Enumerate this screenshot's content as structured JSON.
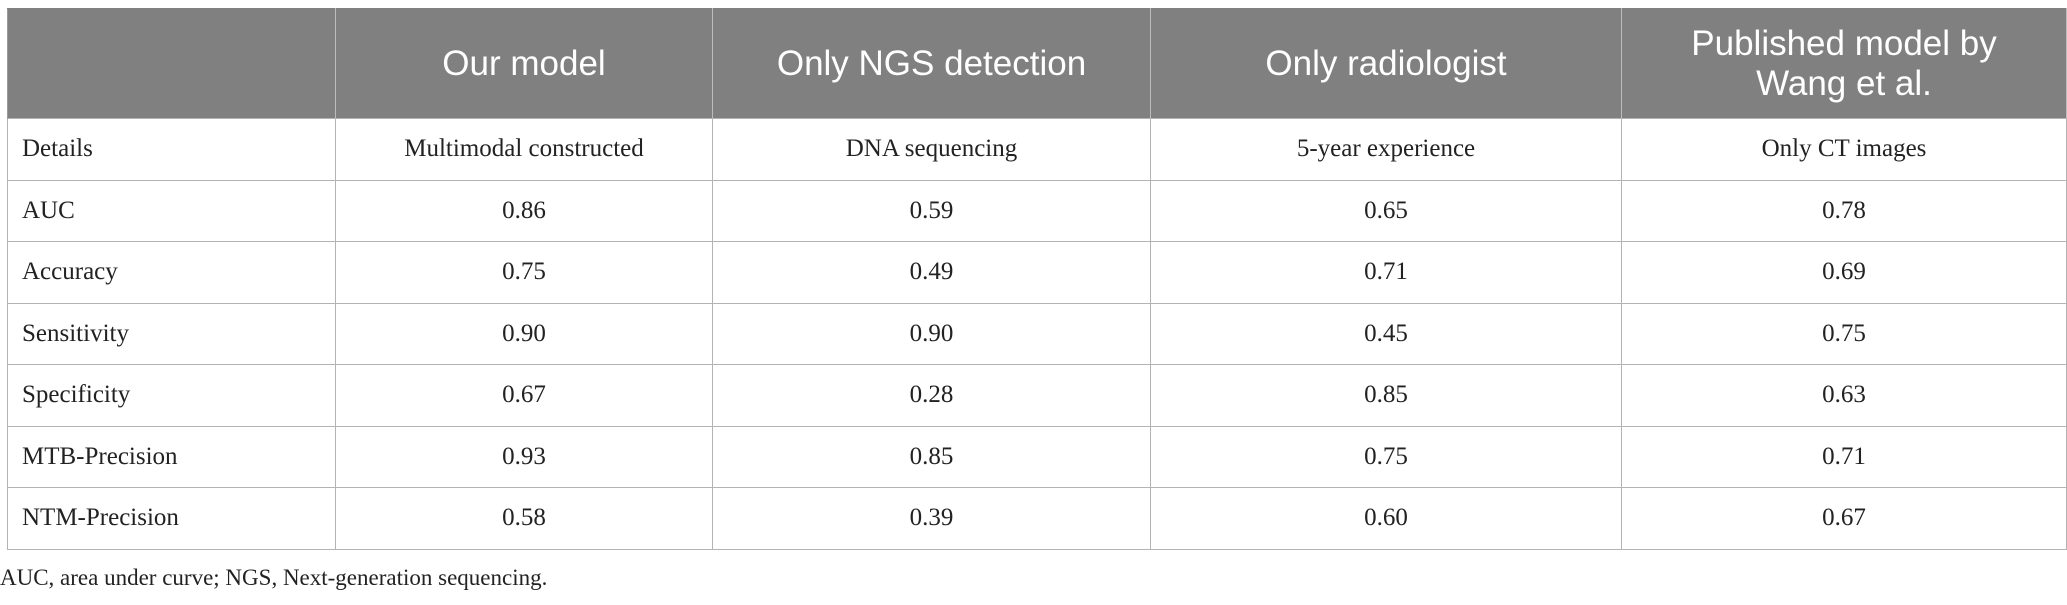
{
  "table": {
    "headers": [
      "",
      "Our model",
      "Only NGS detection",
      "Only radiologist",
      "Published model by Wang et al."
    ],
    "rows": [
      [
        "Details",
        "Multimodal constructed",
        "DNA sequencing",
        "5-year experience",
        "Only CT images"
      ],
      [
        "AUC",
        "0.86",
        "0.59",
        "0.65",
        "0.78"
      ],
      [
        "Accuracy",
        "0.75",
        "0.49",
        "0.71",
        "0.69"
      ],
      [
        "Sensitivity",
        "0.90",
        "0.90",
        "0.45",
        "0.75"
      ],
      [
        "Specificity",
        "0.67",
        "0.28",
        "0.85",
        "0.63"
      ],
      [
        "MTB-Precision",
        "0.93",
        "0.85",
        "0.75",
        "0.71"
      ],
      [
        "NTM-Precision",
        "0.58",
        "0.39",
        "0.60",
        "0.67"
      ]
    ]
  },
  "footnote": "AUC, area under curve; NGS, Next-generation sequencing.",
  "colors": {
    "header_bg": "#808080",
    "header_text": "#ffffff",
    "grid_line": "#b3b3b3",
    "body_text": "#222222"
  }
}
